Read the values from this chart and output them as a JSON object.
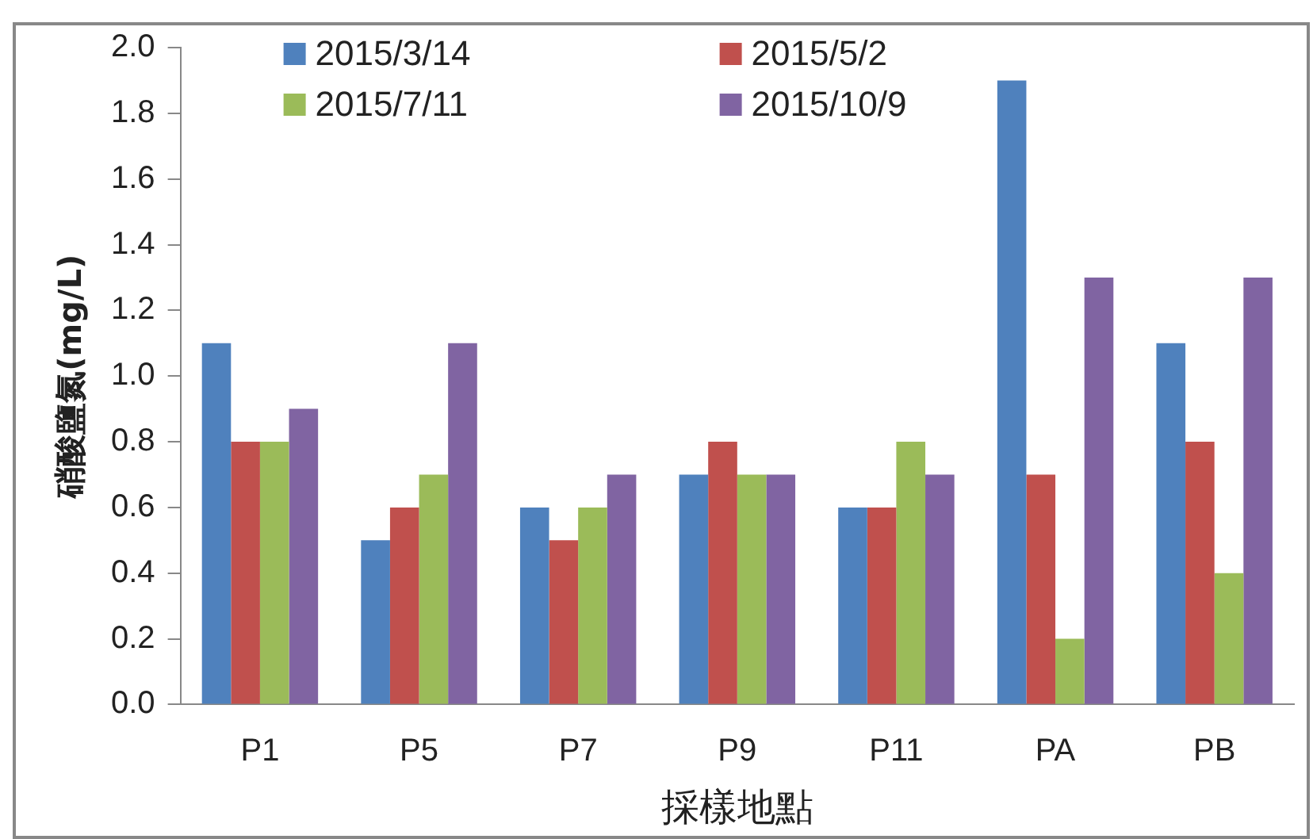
{
  "chart_data": {
    "type": "bar",
    "xlabel": "採樣地點",
    "ylabel": "硝酸鹽氮(mg/L)",
    "categories": [
      "P1",
      "P5",
      "P7",
      "P9",
      "P11",
      "PA",
      "PB"
    ],
    "series": [
      {
        "name": "2015/3/14",
        "color": "#4f81bd",
        "values": [
          1.1,
          0.5,
          0.6,
          0.7,
          0.6,
          1.9,
          1.1
        ]
      },
      {
        "name": "2015/5/2",
        "color": "#c0504d",
        "values": [
          0.8,
          0.6,
          0.5,
          0.8,
          0.6,
          0.7,
          0.8
        ]
      },
      {
        "name": "2015/7/11",
        "color": "#9bbb59",
        "values": [
          0.8,
          0.7,
          0.6,
          0.7,
          0.8,
          0.2,
          0.4
        ]
      },
      {
        "name": "2015/10/9",
        "color": "#8064a2",
        "values": [
          0.9,
          1.1,
          0.7,
          0.7,
          0.7,
          1.3,
          1.3
        ]
      }
    ],
    "ylim": [
      0,
      2
    ],
    "yticks": [
      {
        "value": 0,
        "label": "0.0"
      },
      0.2,
      0.4,
      0.6,
      0.8,
      {
        "value": 1,
        "label": "1.0"
      },
      1.2,
      1.4,
      1.6,
      1.8,
      {
        "value": 2,
        "label": "2.0"
      }
    ],
    "grid": false,
    "legend": "top"
  }
}
